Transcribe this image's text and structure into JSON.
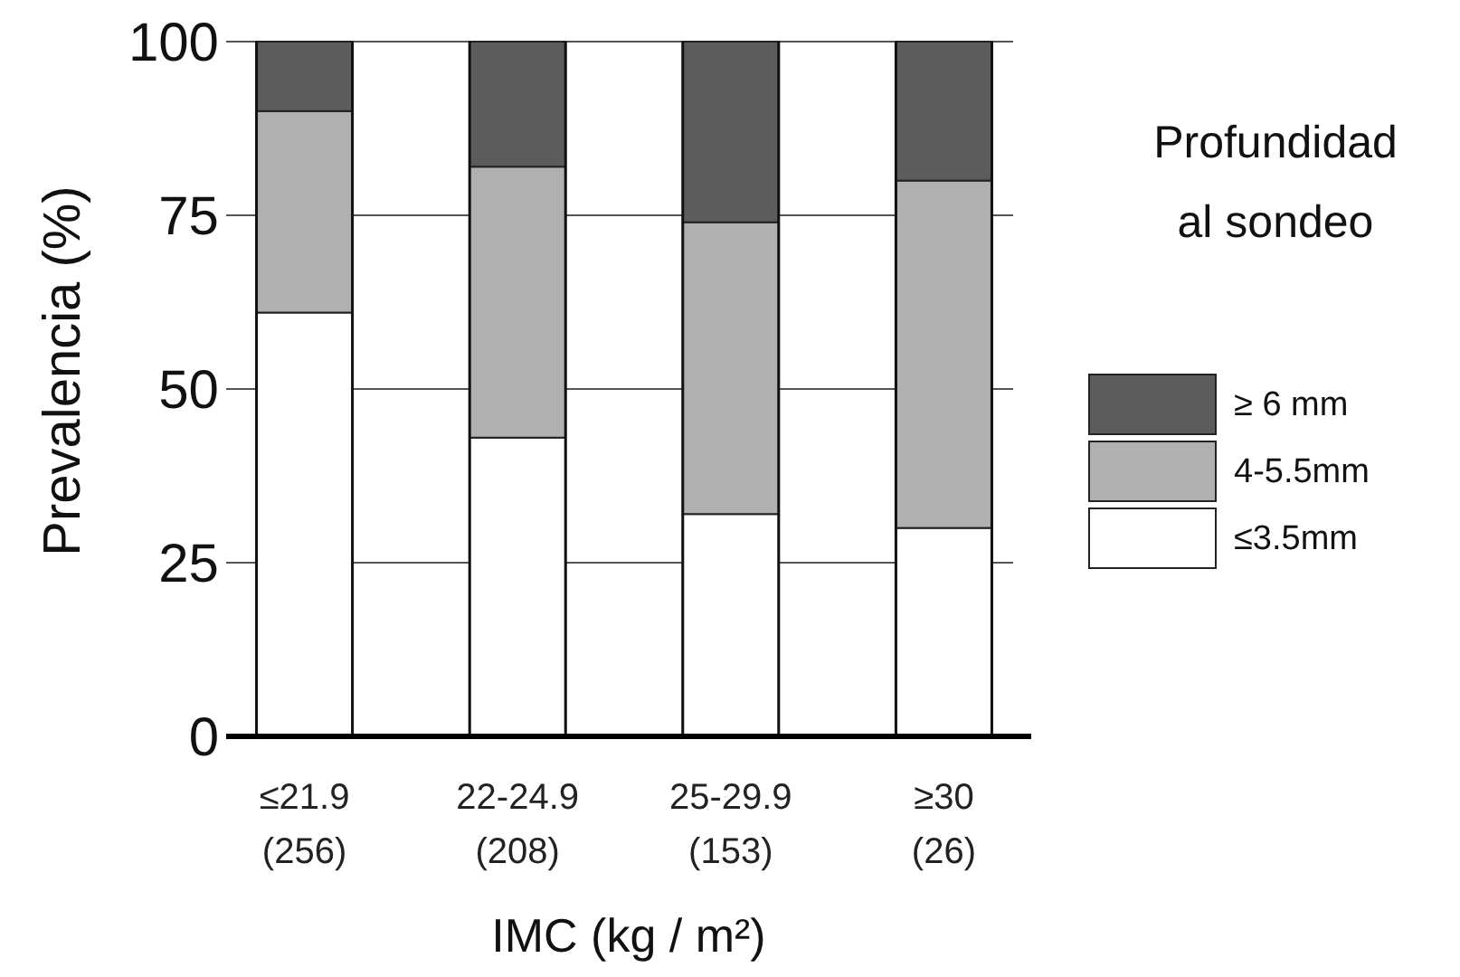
{
  "chart_data": {
    "type": "bar",
    "stacked": true,
    "xlabel": "IMC (kg / m²)",
    "ylabel": "Prevalencia (%)",
    "legend_title": "Profundidad al sondeo",
    "legend": "right",
    "categories": [
      "≤21.9\n(256)",
      "22-24.9\n(208)",
      "25-29.9\n(153)",
      "≥30\n(26)"
    ],
    "series": [
      {
        "name": "≤3.5mm",
        "color": "#ffffff",
        "values": [
          61,
          43,
          32,
          30
        ]
      },
      {
        "name": "4-5.5mm",
        "color": "#b0b0b0",
        "values": [
          29,
          39,
          42,
          50
        ]
      },
      {
        "name": "≥ 6 mm",
        "color": "#5c5c5c",
        "values": [
          10,
          18,
          26,
          20
        ]
      }
    ],
    "ylim": [
      0,
      100
    ],
    "yticks": [
      0,
      25,
      50,
      75,
      100
    ],
    "grid": "y"
  }
}
